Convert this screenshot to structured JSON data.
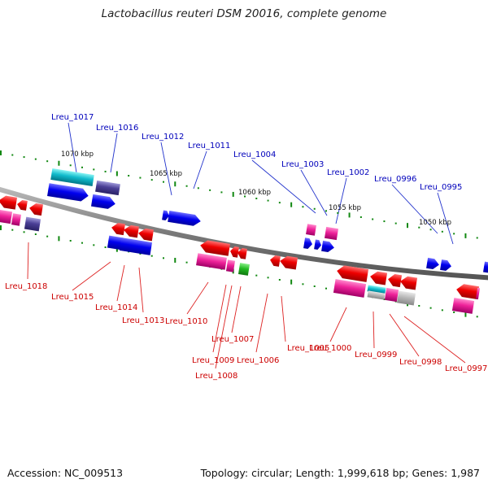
{
  "title": "Lactobacillus reuteri DSM 20016, complete genome",
  "footer": {
    "accession": "Accession: NC_009513",
    "topology": "Topology: circular; Length: 1,999,618 bp; Genes: 1,987"
  },
  "colors": {
    "label_top": "#0000bb",
    "label_bottom": "#cc0000",
    "leader_top": "#2233cc",
    "leader_bottom": "#dd2222",
    "backbone": "#8a8a8a",
    "tick": "#118811"
  },
  "kbp_labels": [
    "1070 kbp",
    "1065 kbp",
    "1060 kbp",
    "1055 kbp",
    "1050 kbp"
  ],
  "gene_labels_top": [
    "Lreu_1017",
    "Lreu_1016",
    "Lreu_1012",
    "Lreu_1011",
    "Lreu_1004",
    "Lreu_1003",
    "Lreu_1002",
    "Lreu_0996",
    "Lreu_0995"
  ],
  "gene_labels_bottom": [
    "Lreu_1018",
    "Lreu_1015",
    "Lreu_1014",
    "Lreu_1013",
    "Lreu_1010",
    "Lreu_1007",
    "Lreu_1009",
    "Lreu_1008",
    "Lreu_1006",
    "Lreu_1005",
    "Lreu_1000",
    "Lreu_0999",
    "Lreu_0998",
    "Lreu_0997"
  ]
}
